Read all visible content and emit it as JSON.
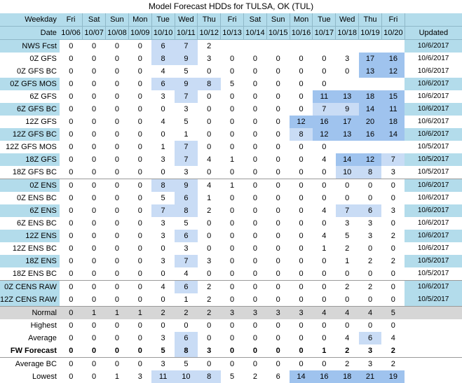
{
  "title": "Model Forecast HDDs for TULSA, OK (TUL)",
  "header": {
    "weekday_label": "Weekday",
    "date_label": "Date",
    "updated_label": "Updated",
    "days": [
      "Fri",
      "Sat",
      "Sun",
      "Mon",
      "Tue",
      "Wed",
      "Thu",
      "Fri",
      "Sat",
      "Sun",
      "Mon",
      "Tue",
      "Wed",
      "Thu",
      "Fri"
    ],
    "dates": [
      "10/06",
      "10/07",
      "10/08",
      "10/09",
      "10/10",
      "10/11",
      "10/12",
      "10/13",
      "10/14",
      "10/15",
      "10/16",
      "10/17",
      "10/18",
      "10/19",
      "10/20"
    ]
  },
  "rows": [
    {
      "label": "NWS Fcst",
      "values": [
        "0",
        "0",
        "0",
        "0",
        "6",
        "7",
        "2",
        "",
        "",
        "",
        "",
        "",
        "",
        "",
        ""
      ],
      "updated": "10/6/2017",
      "hl": [
        0,
        0,
        0,
        0,
        1,
        1,
        0,
        0,
        0,
        0,
        0,
        0,
        0,
        0,
        0
      ],
      "style": "alt"
    },
    {
      "label": "0Z GFS",
      "values": [
        "0",
        "0",
        "0",
        "0",
        "8",
        "9",
        "3",
        "0",
        "0",
        "0",
        "0",
        "0",
        "3",
        "17",
        "16"
      ],
      "updated": "10/6/2017",
      "hl": [
        0,
        0,
        0,
        0,
        1,
        1,
        0,
        0,
        0,
        0,
        0,
        0,
        0,
        2,
        2
      ],
      "style": ""
    },
    {
      "label": "0Z GFS BC",
      "values": [
        "0",
        "0",
        "0",
        "0",
        "4",
        "5",
        "0",
        "0",
        "0",
        "0",
        "0",
        "0",
        "0",
        "13",
        "12"
      ],
      "updated": "10/6/2017",
      "hl": [
        0,
        0,
        0,
        0,
        0,
        0,
        0,
        0,
        0,
        0,
        0,
        0,
        0,
        2,
        2
      ],
      "style": ""
    },
    {
      "label": "0Z GFS MOS",
      "values": [
        "0",
        "0",
        "0",
        "0",
        "6",
        "9",
        "8",
        "5",
        "0",
        "0",
        "0",
        "0",
        "",
        "",
        ""
      ],
      "updated": "10/6/2017",
      "hl": [
        0,
        0,
        0,
        0,
        1,
        1,
        1,
        0,
        0,
        0,
        0,
        0,
        0,
        0,
        0
      ],
      "style": "alt"
    },
    {
      "label": "6Z GFS",
      "values": [
        "0",
        "0",
        "0",
        "0",
        "3",
        "7",
        "0",
        "0",
        "0",
        "0",
        "0",
        "11",
        "13",
        "18",
        "15"
      ],
      "updated": "10/6/2017",
      "hl": [
        0,
        0,
        0,
        0,
        0,
        1,
        0,
        0,
        0,
        0,
        0,
        2,
        2,
        2,
        2
      ],
      "style": ""
    },
    {
      "label": "6Z GFS BC",
      "values": [
        "0",
        "0",
        "0",
        "0",
        "0",
        "3",
        "0",
        "0",
        "0",
        "0",
        "0",
        "7",
        "9",
        "14",
        "11"
      ],
      "updated": "10/6/2017",
      "hl": [
        0,
        0,
        0,
        0,
        0,
        0,
        0,
        0,
        0,
        0,
        0,
        1,
        1,
        2,
        2
      ],
      "style": "alt"
    },
    {
      "label": "12Z GFS",
      "values": [
        "0",
        "0",
        "0",
        "0",
        "4",
        "5",
        "0",
        "0",
        "0",
        "0",
        "12",
        "16",
        "17",
        "20",
        "18"
      ],
      "updated": "10/6/2017",
      "hl": [
        0,
        0,
        0,
        0,
        0,
        0,
        0,
        0,
        0,
        0,
        2,
        2,
        2,
        2,
        2
      ],
      "style": ""
    },
    {
      "label": "12Z GFS BC",
      "values": [
        "0",
        "0",
        "0",
        "0",
        "0",
        "1",
        "0",
        "0",
        "0",
        "0",
        "8",
        "12",
        "13",
        "16",
        "14"
      ],
      "updated": "10/6/2017",
      "hl": [
        0,
        0,
        0,
        0,
        0,
        0,
        0,
        0,
        0,
        0,
        1,
        2,
        2,
        2,
        2
      ],
      "style": "alt"
    },
    {
      "label": "12Z GFS MOS",
      "values": [
        "0",
        "0",
        "0",
        "0",
        "1",
        "7",
        "0",
        "0",
        "0",
        "0",
        "0",
        "0",
        "",
        "",
        ""
      ],
      "updated": "10/5/2017",
      "hl": [
        0,
        0,
        0,
        0,
        0,
        1,
        0,
        0,
        0,
        0,
        0,
        0,
        0,
        0,
        0
      ],
      "style": ""
    },
    {
      "label": "18Z GFS",
      "values": [
        "0",
        "0",
        "0",
        "0",
        "3",
        "7",
        "4",
        "1",
        "0",
        "0",
        "0",
        "4",
        "14",
        "12",
        "7"
      ],
      "updated": "10/5/2017",
      "hl": [
        0,
        0,
        0,
        0,
        0,
        1,
        0,
        0,
        0,
        0,
        0,
        0,
        2,
        2,
        1
      ],
      "style": "alt"
    },
    {
      "label": "18Z GFS BC",
      "values": [
        "0",
        "0",
        "0",
        "0",
        "0",
        "3",
        "0",
        "0",
        "0",
        "0",
        "0",
        "0",
        "10",
        "8",
        "3"
      ],
      "updated": "10/5/2017",
      "hl": [
        0,
        0,
        0,
        0,
        0,
        0,
        0,
        0,
        0,
        0,
        0,
        0,
        1,
        1,
        0
      ],
      "style": "sep-bot"
    },
    {
      "label": "0Z ENS",
      "values": [
        "0",
        "0",
        "0",
        "0",
        "8",
        "9",
        "4",
        "1",
        "0",
        "0",
        "0",
        "0",
        "0",
        "0",
        "0"
      ],
      "updated": "10/6/2017",
      "hl": [
        0,
        0,
        0,
        0,
        1,
        1,
        0,
        0,
        0,
        0,
        0,
        0,
        0,
        0,
        0
      ],
      "style": "alt"
    },
    {
      "label": "0Z ENS BC",
      "values": [
        "0",
        "0",
        "0",
        "0",
        "5",
        "6",
        "1",
        "0",
        "0",
        "0",
        "0",
        "0",
        "0",
        "0",
        "0"
      ],
      "updated": "10/6/2017",
      "hl": [
        0,
        0,
        0,
        0,
        0,
        1,
        0,
        0,
        0,
        0,
        0,
        0,
        0,
        0,
        0
      ],
      "style": ""
    },
    {
      "label": "6Z ENS",
      "values": [
        "0",
        "0",
        "0",
        "0",
        "7",
        "8",
        "2",
        "0",
        "0",
        "0",
        "0",
        "4",
        "7",
        "6",
        "3"
      ],
      "updated": "10/6/2017",
      "hl": [
        0,
        0,
        0,
        0,
        1,
        1,
        0,
        0,
        0,
        0,
        0,
        0,
        1,
        1,
        0
      ],
      "style": "alt"
    },
    {
      "label": "6Z ENS BC",
      "values": [
        "0",
        "0",
        "0",
        "0",
        "3",
        "5",
        "0",
        "0",
        "0",
        "0",
        "0",
        "0",
        "3",
        "3",
        "0"
      ],
      "updated": "10/6/2017",
      "hl": [
        0,
        0,
        0,
        0,
        0,
        0,
        0,
        0,
        0,
        0,
        0,
        0,
        0,
        0,
        0
      ],
      "style": ""
    },
    {
      "label": "12Z ENS",
      "values": [
        "0",
        "0",
        "0",
        "0",
        "3",
        "6",
        "0",
        "0",
        "0",
        "0",
        "0",
        "4",
        "5",
        "3",
        "2"
      ],
      "updated": "10/6/2017",
      "hl": [
        0,
        0,
        0,
        0,
        0,
        1,
        0,
        0,
        0,
        0,
        0,
        0,
        0,
        0,
        0
      ],
      "style": "alt"
    },
    {
      "label": "12Z ENS BC",
      "values": [
        "0",
        "0",
        "0",
        "0",
        "0",
        "3",
        "0",
        "0",
        "0",
        "0",
        "0",
        "1",
        "2",
        "0",
        "0"
      ],
      "updated": "10/6/2017",
      "hl": [
        0,
        0,
        0,
        0,
        0,
        0,
        0,
        0,
        0,
        0,
        0,
        0,
        0,
        0,
        0
      ],
      "style": ""
    },
    {
      "label": "18Z ENS",
      "values": [
        "0",
        "0",
        "0",
        "0",
        "3",
        "7",
        "3",
        "0",
        "0",
        "0",
        "0",
        "0",
        "1",
        "2",
        "2"
      ],
      "updated": "10/5/2017",
      "hl": [
        0,
        0,
        0,
        0,
        0,
        1,
        0,
        0,
        0,
        0,
        0,
        0,
        0,
        0,
        0
      ],
      "style": "alt"
    },
    {
      "label": "18Z ENS BC",
      "values": [
        "0",
        "0",
        "0",
        "0",
        "0",
        "4",
        "0",
        "0",
        "0",
        "0",
        "0",
        "0",
        "0",
        "0",
        "0"
      ],
      "updated": "10/5/2017",
      "hl": [
        0,
        0,
        0,
        0,
        0,
        0,
        0,
        0,
        0,
        0,
        0,
        0,
        0,
        0,
        0
      ],
      "style": "sep-bot"
    },
    {
      "label": "0Z CENS RAW",
      "values": [
        "0",
        "0",
        "0",
        "0",
        "4",
        "6",
        "2",
        "0",
        "0",
        "0",
        "0",
        "0",
        "2",
        "2",
        "0"
      ],
      "updated": "10/6/2017",
      "hl": [
        0,
        0,
        0,
        0,
        0,
        1,
        0,
        0,
        0,
        0,
        0,
        0,
        0,
        0,
        0
      ],
      "style": "alt small"
    },
    {
      "label": "12Z CENS RAW",
      "values": [
        "0",
        "0",
        "0",
        "0",
        "0",
        "1",
        "2",
        "0",
        "0",
        "0",
        "0",
        "0",
        "0",
        "0",
        "0"
      ],
      "updated": "10/5/2017",
      "hl": [
        0,
        0,
        0,
        0,
        0,
        0,
        0,
        0,
        0,
        0,
        0,
        0,
        0,
        0,
        0
      ],
      "style": "alt small sep-bot"
    },
    {
      "label": "Normal",
      "values": [
        "0",
        "1",
        "1",
        "1",
        "2",
        "2",
        "2",
        "3",
        "3",
        "3",
        "3",
        "4",
        "4",
        "4",
        "5"
      ],
      "updated": "",
      "hl": [
        0,
        0,
        0,
        0,
        0,
        0,
        0,
        0,
        0,
        0,
        0,
        0,
        0,
        0,
        0
      ],
      "style": "normal"
    },
    {
      "label": "Highest",
      "values": [
        "0",
        "0",
        "0",
        "0",
        "0",
        "0",
        "0",
        "0",
        "0",
        "0",
        "0",
        "0",
        "0",
        "0",
        "0"
      ],
      "updated": "",
      "hl": [
        0,
        0,
        0,
        0,
        0,
        0,
        0,
        0,
        0,
        0,
        0,
        0,
        0,
        0,
        0
      ],
      "style": ""
    },
    {
      "label": "Average",
      "values": [
        "0",
        "0",
        "0",
        "0",
        "3",
        "6",
        "0",
        "0",
        "0",
        "0",
        "0",
        "0",
        "4",
        "6",
        "4"
      ],
      "updated": "",
      "hl": [
        0,
        0,
        0,
        0,
        0,
        1,
        0,
        0,
        0,
        0,
        0,
        0,
        0,
        1,
        0
      ],
      "style": ""
    },
    {
      "label": "FW Forecast",
      "values": [
        "0",
        "0",
        "0",
        "0",
        "5",
        "8",
        "3",
        "0",
        "0",
        "0",
        "0",
        "1",
        "2",
        "3",
        "2"
      ],
      "updated": "",
      "hl": [
        0,
        0,
        0,
        0,
        0,
        1,
        0,
        0,
        0,
        0,
        0,
        0,
        0,
        0,
        0
      ],
      "style": "fw sep-bot"
    },
    {
      "label": "Average BC",
      "values": [
        "0",
        "0",
        "0",
        "0",
        "3",
        "5",
        "0",
        "0",
        "0",
        "0",
        "0",
        "0",
        "2",
        "3",
        "2"
      ],
      "updated": "",
      "hl": [
        0,
        0,
        0,
        0,
        0,
        0,
        0,
        0,
        0,
        0,
        0,
        0,
        0,
        0,
        0
      ],
      "style": ""
    },
    {
      "label": "Lowest",
      "values": [
        "0",
        "0",
        "1",
        "3",
        "11",
        "10",
        "8",
        "5",
        "2",
        "6",
        "14",
        "16",
        "18",
        "21",
        "19"
      ],
      "updated": "",
      "hl": [
        0,
        0,
        0,
        0,
        1,
        1,
        1,
        0,
        0,
        0,
        2,
        2,
        2,
        2,
        2
      ],
      "style": ""
    }
  ]
}
